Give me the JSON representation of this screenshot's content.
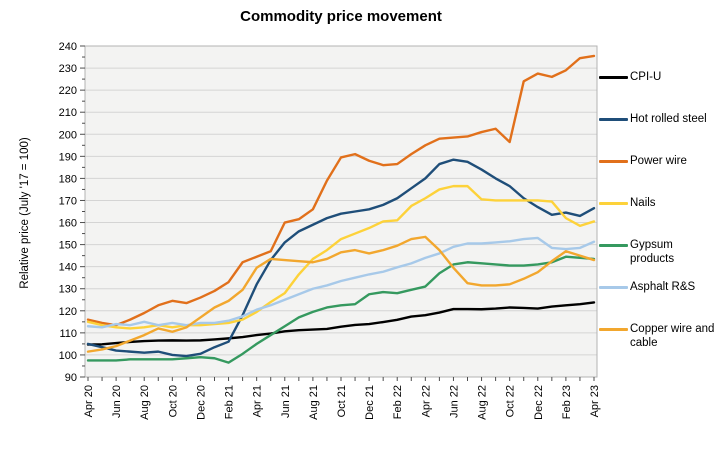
{
  "chart_data": {
    "type": "line",
    "title": "Commodity price movement",
    "ylabel": "Relative price (July '17 = 100)",
    "ylim": [
      90,
      240
    ],
    "ytick_step": 10,
    "grid": true,
    "legend_position": "right",
    "x_label_every": 2,
    "x_categories": [
      "Apr 20",
      "May 20",
      "Jun 20",
      "Jul 20",
      "Aug 20",
      "Sep 20",
      "Oct 20",
      "Nov 20",
      "Dec 20",
      "Jan 21",
      "Feb 21",
      "Mar 21",
      "Apr 21",
      "May 21",
      "Jun 21",
      "Jul 21",
      "Aug 21",
      "Sep 21",
      "Oct 21",
      "Nov 21",
      "Dec 21",
      "Jan 22",
      "Feb 22",
      "Mar 22",
      "Apr 22",
      "May 22",
      "Jun 22",
      "Jul 22",
      "Aug 22",
      "Sep 22",
      "Oct 22",
      "Nov 22",
      "Dec 22",
      "Jan 23",
      "Feb 23",
      "Mar 23",
      "Apr 23"
    ],
    "series": [
      {
        "name": "CPI-U",
        "legend_label": "CPI-U",
        "color": "#000000",
        "values": [
          104.7,
          104.8,
          105.4,
          105.9,
          106.3,
          106.5,
          106.6,
          106.5,
          106.6,
          107.0,
          107.5,
          108.1,
          109.0,
          109.7,
          110.7,
          111.2,
          111.5,
          111.8,
          112.8,
          113.6,
          114.0,
          114.9,
          115.9,
          117.4,
          118.0,
          119.2,
          120.8,
          120.8,
          120.7,
          121.0,
          121.5,
          121.3,
          121.0,
          121.9,
          122.5,
          123.0,
          123.8
        ]
      },
      {
        "name": "Hot rolled steel",
        "legend_label": "Hot rolled steel",
        "color": "#1f4e79",
        "values": [
          105,
          103.5,
          102,
          101.5,
          101,
          101.5,
          100,
          99.5,
          100.5,
          103.5,
          106,
          118,
          132,
          143,
          151,
          156,
          159,
          162,
          164,
          165,
          166,
          168,
          171,
          175.5,
          180,
          186.5,
          188.5,
          187.5,
          184,
          180,
          176.5,
          171,
          167,
          163.5,
          164.5,
          163,
          166.5
        ]
      },
      {
        "name": "Power wire",
        "legend_label": "Power wire",
        "color": "#e1701b",
        "values": [
          116,
          114.5,
          113.5,
          116,
          119,
          122.5,
          124.5,
          123.5,
          126,
          129,
          133,
          142,
          144.5,
          147,
          160,
          161.5,
          166,
          179,
          189.5,
          191,
          188,
          186,
          186.5,
          191,
          195,
          198,
          198.5,
          199,
          201,
          202.5,
          196.5,
          224,
          227.5,
          226,
          229,
          234.5,
          235.5
        ]
      },
      {
        "name": "Nails",
        "legend_label": "Nails",
        "color": "#fdd23a",
        "values": [
          115,
          113.5,
          112.5,
          112,
          112.5,
          113.5,
          112.5,
          113.5,
          113.5,
          114,
          114.5,
          116,
          119.5,
          124,
          128,
          136.5,
          143.5,
          147.5,
          152.5,
          155,
          157.5,
          160.5,
          161,
          167.5,
          171,
          175,
          176.5,
          176.5,
          170.5,
          170,
          170,
          170,
          170,
          169.5,
          162,
          158.5,
          160.5
        ]
      },
      {
        "name": "Gypsum products",
        "legend_label": "Gypsum\nproducts",
        "color": "#35995f",
        "values": [
          97.5,
          97.5,
          97.5,
          98,
          98,
          98,
          98,
          98.5,
          99,
          98.5,
          96.5,
          100.5,
          105,
          109,
          113,
          117,
          119.5,
          121.5,
          122.5,
          123,
          127.5,
          128.5,
          128,
          129.5,
          131,
          137,
          141,
          142,
          141.5,
          141,
          140.5,
          140.5,
          141,
          142,
          144.5,
          144,
          143.5
        ]
      },
      {
        "name": "Asphalt R&S",
        "legend_label": "Asphalt R&S",
        "color": "#a7c9e9",
        "values": [
          113,
          112.5,
          114,
          113.5,
          115,
          113.5,
          114.5,
          113.5,
          114.5,
          114.5,
          115.5,
          117.5,
          120.5,
          122.5,
          125,
          127.5,
          130,
          131.5,
          133.5,
          135,
          136.5,
          137.7,
          139.7,
          141.5,
          144,
          146,
          149,
          150.5,
          150.5,
          151,
          151.5,
          152.5,
          153,
          148.5,
          148,
          148.5,
          151.3
        ]
      },
      {
        "name": "Copper wire and cable",
        "legend_label": "Copper wire and\ncable",
        "color": "#f2a72e",
        "values": [
          101.5,
          102.5,
          104,
          106.5,
          109,
          112,
          110.5,
          112.5,
          117,
          121.5,
          124.5,
          129.5,
          139.5,
          143.5,
          143,
          142.5,
          142,
          143.5,
          146.5,
          147.5,
          146,
          147.5,
          149.5,
          152.5,
          153.5,
          147.5,
          139.5,
          132.5,
          131.5,
          131.5,
          132,
          134.5,
          137.5,
          142.5,
          147,
          145,
          143
        ]
      }
    ]
  }
}
